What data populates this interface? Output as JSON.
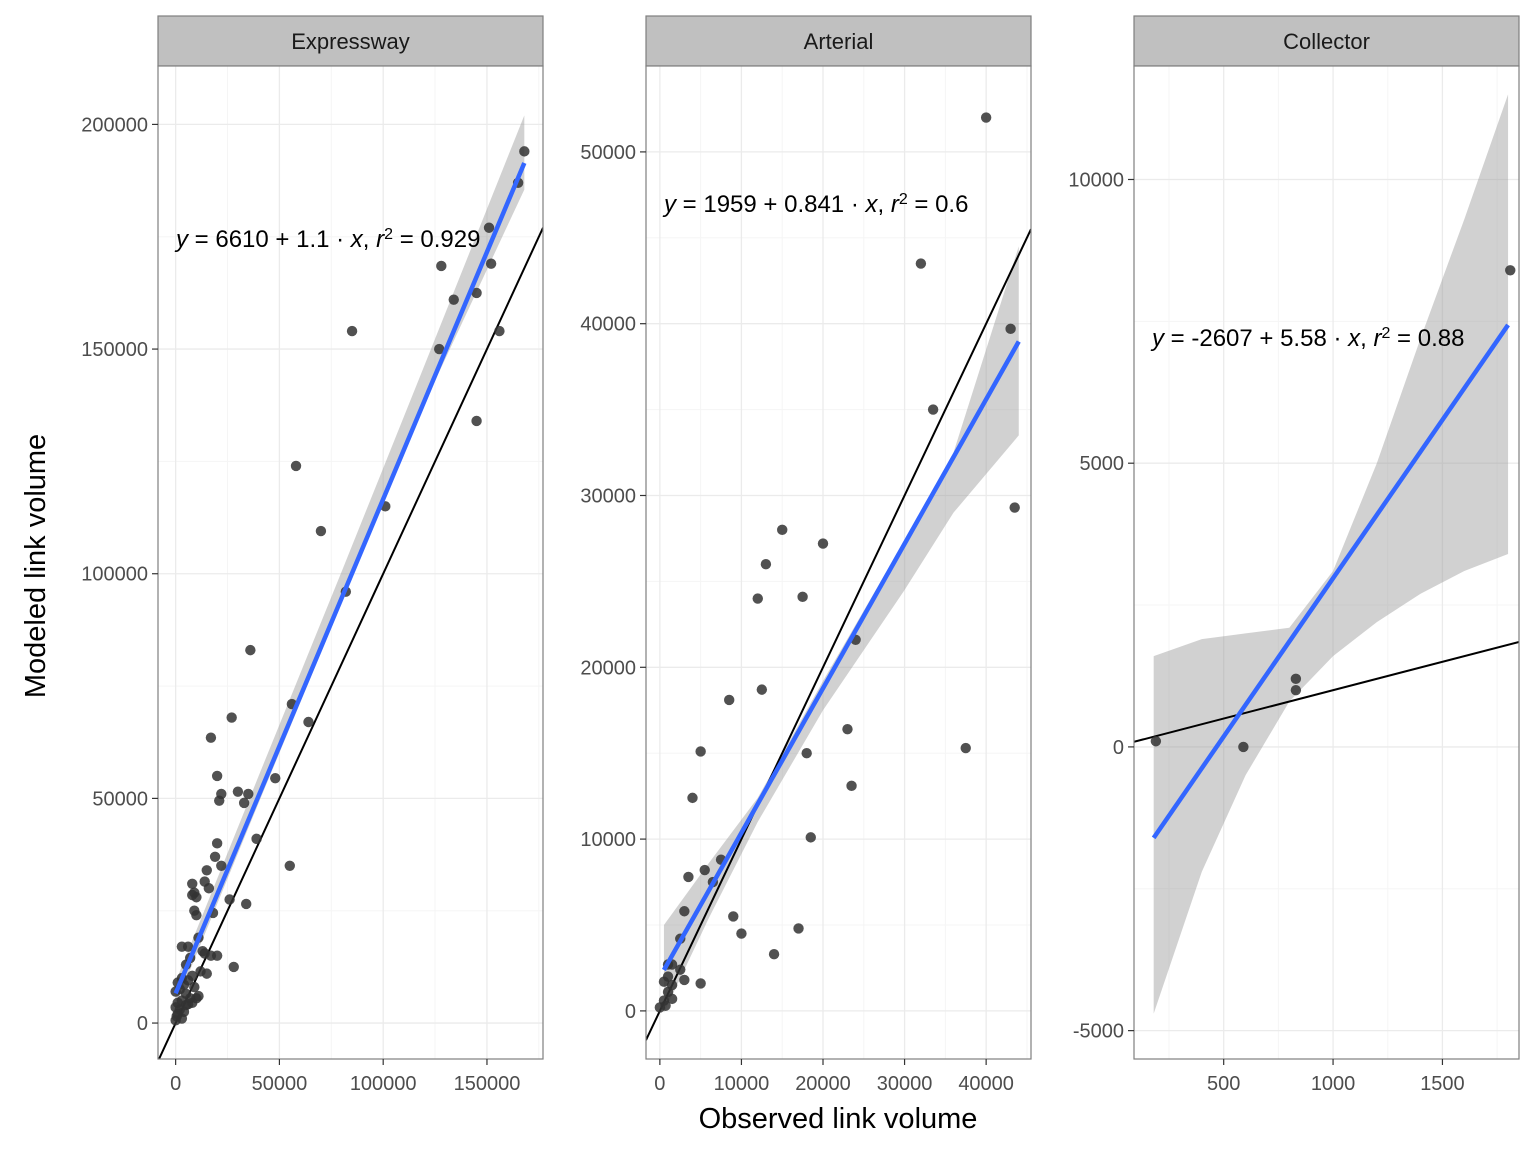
{
  "chart_data": {
    "type": "scatter",
    "xlabel": "Observed link volume",
    "ylabel": "Modeled link volume",
    "style": {
      "strip_bg": "#c0c0c0",
      "grid_major": "#ebebeb",
      "grid_minor": "#f5f5f5",
      "panel_border": "#7f7f7f",
      "point_color": "#333333",
      "fit_color": "#3366ff",
      "ci_fill": "#999999",
      "ref_line_color": "#000000"
    },
    "panels": [
      {
        "name": "Expressway",
        "equation": {
          "intercept": "6610",
          "slope": "1.1",
          "r2": "0.929"
        },
        "fit": {
          "intercept": 6610,
          "slope": 1.1
        },
        "reference_line": {
          "intercept": 0,
          "slope": 1
        },
        "xlim": [
          -8500,
          177000
        ],
        "ylim": [
          -8000,
          213000
        ],
        "xticks": [
          0,
          50000,
          100000,
          150000
        ],
        "yticks": [
          0,
          50000,
          100000,
          150000,
          200000
        ],
        "ci": {
          "x": [
            0,
            40000,
            80000,
            120000,
            168000
          ],
          "lower": [
            4000,
            49000,
            93500,
            138000,
            185500
          ],
          "upper": [
            9200,
            55000,
            100500,
            146500,
            202000
          ]
        },
        "points": [
          [
            168000,
            194000
          ],
          [
            165000,
            187000
          ],
          [
            151000,
            177000
          ],
          [
            152000,
            169000
          ],
          [
            128000,
            168500
          ],
          [
            134000,
            161000
          ],
          [
            145000,
            162500
          ],
          [
            127000,
            150000
          ],
          [
            156000,
            154000
          ],
          [
            85000,
            154000
          ],
          [
            145000,
            134000
          ],
          [
            58000,
            124000
          ],
          [
            70000,
            109500
          ],
          [
            101000,
            115000
          ],
          [
            82000,
            96000
          ],
          [
            36000,
            83000
          ],
          [
            56000,
            71000
          ],
          [
            27000,
            68000
          ],
          [
            64000,
            67000
          ],
          [
            17000,
            63500
          ],
          [
            48000,
            54500
          ],
          [
            20000,
            55000
          ],
          [
            22000,
            51000
          ],
          [
            30000,
            51500
          ],
          [
            35000,
            51000
          ],
          [
            33000,
            49000
          ],
          [
            21000,
            49500
          ],
          [
            39000,
            41000
          ],
          [
            20000,
            40000
          ],
          [
            19000,
            37000
          ],
          [
            55000,
            35000
          ],
          [
            22000,
            35000
          ],
          [
            15000,
            34000
          ],
          [
            8000,
            31000
          ],
          [
            14000,
            31500
          ],
          [
            16000,
            30000
          ],
          [
            9000,
            29000
          ],
          [
            10000,
            28000
          ],
          [
            8000,
            28500
          ],
          [
            26000,
            27500
          ],
          [
            34000,
            26500
          ],
          [
            9000,
            25000
          ],
          [
            18000,
            24500
          ],
          [
            10000,
            24000
          ],
          [
            11000,
            19000
          ],
          [
            6000,
            17000
          ],
          [
            3000,
            17000
          ],
          [
            13000,
            16000
          ],
          [
            14000,
            15500
          ],
          [
            17000,
            15000
          ],
          [
            20000,
            15000
          ],
          [
            7000,
            14500
          ],
          [
            5000,
            13000
          ],
          [
            28000,
            12500
          ],
          [
            12000,
            11500
          ],
          [
            15000,
            11000
          ],
          [
            8000,
            10500
          ],
          [
            3000,
            10000
          ],
          [
            6000,
            9500
          ],
          [
            1000,
            9000
          ],
          [
            4000,
            8500
          ],
          [
            9000,
            8000
          ],
          [
            2000,
            7500
          ],
          [
            0,
            7000
          ],
          [
            5000,
            6500
          ],
          [
            11000,
            6000
          ],
          [
            7000,
            5500
          ],
          [
            3000,
            5000
          ],
          [
            1000,
            4500
          ],
          [
            8000,
            4500
          ],
          [
            5000,
            4000
          ],
          [
            0,
            3500
          ],
          [
            2000,
            3000
          ],
          [
            4000,
            2500
          ],
          [
            1000,
            2000
          ],
          [
            500,
            1500
          ],
          [
            3000,
            1000
          ],
          [
            0,
            600
          ],
          [
            6000,
            4200
          ],
          [
            10000,
            5500
          ]
        ]
      },
      {
        "name": "Arterial",
        "equation": {
          "intercept": "1959",
          "slope": "0.841",
          "r2": "0.6"
        },
        "fit": {
          "intercept": 1959,
          "slope": 0.841
        },
        "reference_line": {
          "intercept": 0,
          "slope": 1
        },
        "xlim": [
          -1700,
          45500
        ],
        "ylim": [
          -2800,
          55000
        ],
        "xticks": [
          0,
          10000,
          20000,
          30000,
          40000
        ],
        "yticks": [
          0,
          10000,
          20000,
          30000,
          40000,
          50000
        ],
        "ci": {
          "x": [
            500,
            6000,
            12000,
            20000,
            30000,
            36000,
            44000
          ],
          "lower": [
            -100,
            5400,
            11000,
            17500,
            24500,
            29000,
            33500
          ],
          "upper": [
            5000,
            8600,
            12400,
            19200,
            27400,
            32500,
            44500
          ]
        },
        "points": [
          [
            40000,
            52000
          ],
          [
            32000,
            43500
          ],
          [
            43000,
            39700
          ],
          [
            33500,
            35000
          ],
          [
            43500,
            29300
          ],
          [
            15000,
            28000
          ],
          [
            20000,
            27200
          ],
          [
            13000,
            26000
          ],
          [
            12000,
            24000
          ],
          [
            17500,
            24100
          ],
          [
            24000,
            21600
          ],
          [
            8500,
            18100
          ],
          [
            12500,
            18700
          ],
          [
            23000,
            16400
          ],
          [
            5000,
            15100
          ],
          [
            18000,
            15000
          ],
          [
            37500,
            15300
          ],
          [
            23500,
            13100
          ],
          [
            4000,
            12400
          ],
          [
            18500,
            10100
          ],
          [
            3500,
            7800
          ],
          [
            5500,
            8200
          ],
          [
            7500,
            8800
          ],
          [
            6500,
            7500
          ],
          [
            3000,
            5800
          ],
          [
            9000,
            5500
          ],
          [
            10000,
            4500
          ],
          [
            17000,
            4800
          ],
          [
            14000,
            3300
          ],
          [
            2500,
            4200
          ],
          [
            1500,
            2700
          ],
          [
            2500,
            2400
          ],
          [
            1000,
            2000
          ],
          [
            3000,
            1800
          ],
          [
            500,
            1700
          ],
          [
            5000,
            1600
          ],
          [
            1500,
            1500
          ],
          [
            1000,
            1100
          ],
          [
            500,
            600
          ],
          [
            1500,
            700
          ],
          [
            0,
            200
          ],
          [
            700,
            300
          ],
          [
            1000,
            2700
          ]
        ]
      },
      {
        "name": "Collector",
        "equation": {
          "intercept": "-2607",
          "slope": "5.58",
          "r2": "0.88"
        },
        "fit": {
          "intercept": -2607,
          "slope": 5.58
        },
        "reference_line": {
          "intercept": 0,
          "slope": 1
        },
        "xlim": [
          90,
          1850
        ],
        "ylim": [
          -5500,
          12000
        ],
        "xticks": [
          500,
          1000,
          1500
        ],
        "yticks": [
          -5000,
          0,
          5000,
          10000
        ],
        "ci": {
          "x": [
            180,
            400,
            600,
            800,
            1000,
            1200,
            1400,
            1600,
            1800
          ],
          "lower": [
            -4700,
            -2200,
            -500,
            800,
            1600,
            2200,
            2700,
            3100,
            3400
          ],
          "upper": [
            1600,
            1900,
            2000,
            2100,
            3100,
            5000,
            7200,
            9300,
            11500
          ]
        },
        "points": [
          [
            1810,
            8400
          ],
          [
            830,
            1200
          ],
          [
            830,
            1000
          ],
          [
            590,
            0
          ],
          [
            190,
            100
          ]
        ]
      }
    ]
  }
}
